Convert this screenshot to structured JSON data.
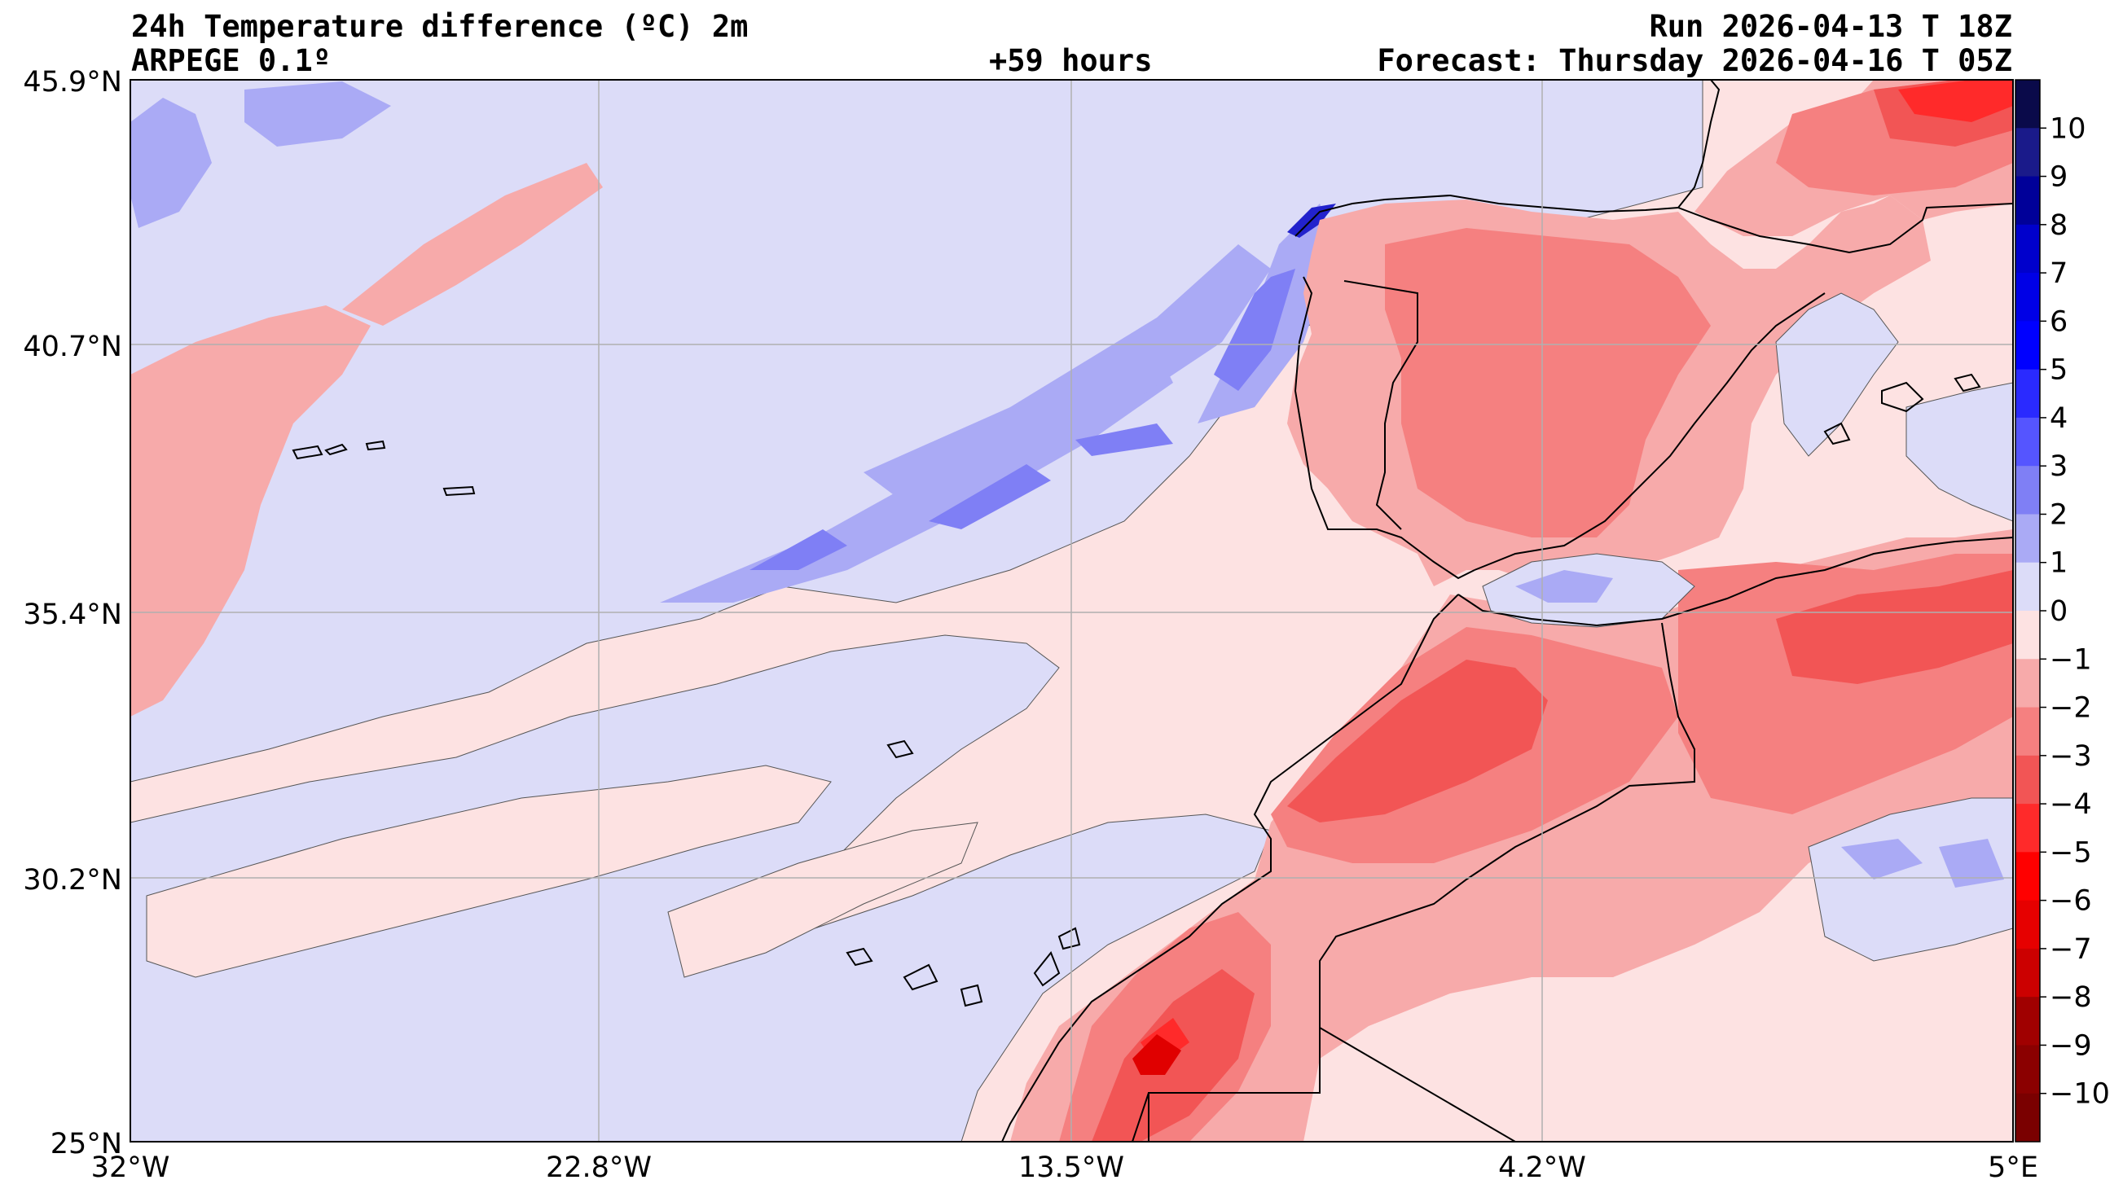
{
  "header": {
    "title": "24h Temperature difference (ºC) 2m",
    "model": "ARPEGE 0.1º",
    "lead": "+59 hours",
    "run": "Run 2026-04-13 T 18Z",
    "forecast": "Forecast: Thursday 2026-04-16 T 05Z"
  },
  "map": {
    "lon_range": [
      -32,
      5
    ],
    "lat_range": [
      25,
      45.9
    ],
    "lon_ticks": [
      "32°W",
      "22.8°W",
      "13.5°W",
      "4.2°W",
      "5°E"
    ],
    "lat_ticks": [
      "45.9°N",
      "40.7°N",
      "35.4°N",
      "30.2°N",
      "25°N"
    ],
    "grid": true
  },
  "colorbar": {
    "labels": [
      "10",
      "9",
      "8",
      "7",
      "6",
      "5",
      "4",
      "3",
      "2",
      "1",
      "0",
      "−1",
      "−2",
      "−3",
      "−4",
      "−5",
      "−6",
      "−7",
      "−8",
      "−9",
      "−10"
    ],
    "colors": [
      "#0a0a4a",
      "#1a1a8a",
      "#000099",
      "#0000cc",
      "#0000e6",
      "#0000ff",
      "#2a2aff",
      "#5555ff",
      "#7f7ff5",
      "#aaaaf5",
      "#dcdcf8",
      "#fde2e2",
      "#f7aaaa",
      "#f58080",
      "#f25555",
      "#ff2a2a",
      "#ff0000",
      "#e60000",
      "#cc0000",
      "#a00000",
      "#8b0000",
      "#7a0000"
    ]
  },
  "fill_colors": {
    "neg1": "#dcdcf8",
    "neg2": "#aaaaf5",
    "neg3": "#7f7ff5",
    "neg4": "#5555ff",
    "neg6": "#2222cc",
    "pos0": "#fde2e2",
    "pos1": "#f7aaaa",
    "pos2": "#f58080",
    "pos3": "#f25555",
    "pos4": "#ff2a2a",
    "pos6": "#e00000",
    "pos8": "#b80000"
  }
}
